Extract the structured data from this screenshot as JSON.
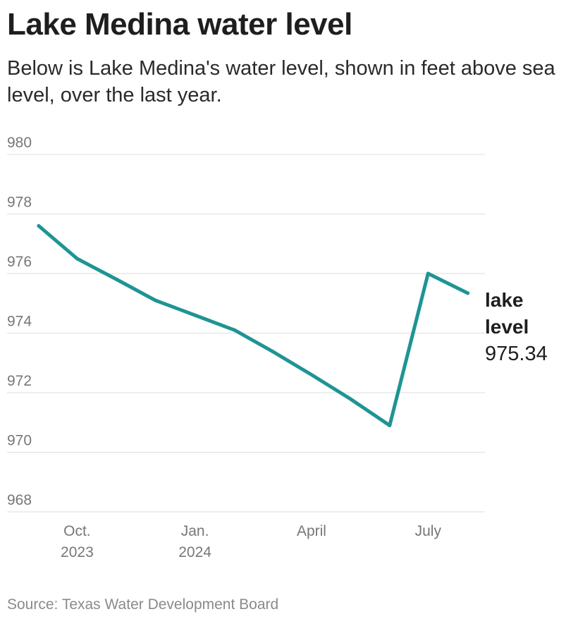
{
  "title": "Lake Medina water level",
  "subtitle": "Below is Lake Medina's water level, shown in feet above sea level, over the last year.",
  "source": "Source: Texas Water Development Board",
  "chart_data": {
    "type": "line",
    "title": "Lake Medina water level",
    "subtitle": "Below is Lake Medina's water level, shown in feet above sea level, over the last year.",
    "xlabel": "",
    "ylabel": "",
    "ylim": [
      968,
      980
    ],
    "yticks": [
      980,
      978,
      976,
      974,
      972,
      970,
      968
    ],
    "xlim": [
      "2023-08-15",
      "2024-08-10"
    ],
    "xticks": [
      {
        "date": "2023-10-01",
        "lines": [
          "Oct.",
          "2023"
        ]
      },
      {
        "date": "2024-01-01",
        "lines": [
          "Jan.",
          "2024"
        ]
      },
      {
        "date": "2024-04-01",
        "lines": [
          "April"
        ]
      },
      {
        "date": "2024-07-01",
        "lines": [
          "July"
        ]
      }
    ],
    "grid": true,
    "line_color": "#1e9494",
    "series": [
      {
        "name": "lake level",
        "x": [
          "2023-09-01",
          "2023-10-01",
          "2023-11-01",
          "2023-12-01",
          "2024-01-01",
          "2024-02-01",
          "2024-03-01",
          "2024-04-01",
          "2024-05-01",
          "2024-06-01",
          "2024-07-01",
          "2024-08-01"
        ],
        "values": [
          977.6,
          976.5,
          975.8,
          975.1,
          974.6,
          974.1,
          973.4,
          972.6,
          971.8,
          970.9,
          976.0,
          975.34
        ]
      }
    ],
    "end_label": {
      "name_lines": [
        "lake",
        "level"
      ],
      "value": "975.34"
    }
  }
}
